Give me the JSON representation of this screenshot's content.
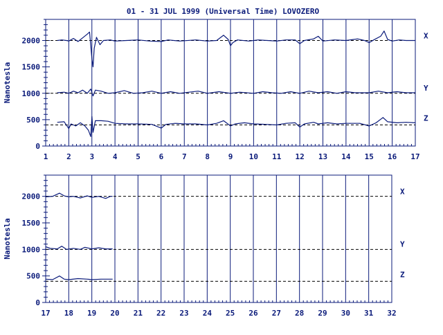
{
  "title": "01 - 31 JUL 1999 (Universal Time) LOVOZERO",
  "colors": {
    "ink": "#0a1a7a",
    "trace": "#0a1a7a"
  },
  "chart_data": [
    {
      "type": "line",
      "panel": "top",
      "title": "01 - 31 JUL 1999 (Universal Time) LOVOZERO",
      "ylabel": "Nanotesla",
      "xlim": [
        1,
        17
      ],
      "ylim": [
        0,
        2400
      ],
      "x_ticks": [
        1,
        2,
        3,
        4,
        5,
        6,
        7,
        8,
        9,
        10,
        11,
        12,
        13,
        14,
        15,
        16,
        17
      ],
      "y_ticks": [
        0,
        500,
        1000,
        1500,
        2000
      ],
      "grid": "vertical lines at each day",
      "baselines": [
        2000,
        1000,
        400
      ],
      "series": [
        {
          "name": "X",
          "points": [
            [
              1.5,
              2000
            ],
            [
              1.7,
              2010
            ],
            [
              1.9,
              2000
            ],
            [
              2.0,
              1990
            ],
            [
              2.2,
              2040
            ],
            [
              2.4,
              1980
            ],
            [
              2.6,
              2050
            ],
            [
              2.8,
              2120
            ],
            [
              2.9,
              2160
            ],
            [
              3.0,
              1650
            ],
            [
              3.05,
              1500
            ],
            [
              3.1,
              1850
            ],
            [
              3.2,
              2060
            ],
            [
              3.35,
              1920
            ],
            [
              3.5,
              2000
            ],
            [
              3.8,
              2010
            ],
            [
              4.0,
              1990
            ],
            [
              4.5,
              2000
            ],
            [
              5.0,
              2010
            ],
            [
              5.5,
              1990
            ],
            [
              6.0,
              1980
            ],
            [
              6.3,
              2010
            ],
            [
              6.8,
              1990
            ],
            [
              7.5,
              2010
            ],
            [
              8.0,
              1990
            ],
            [
              8.4,
              2000
            ],
            [
              8.7,
              2100
            ],
            [
              8.9,
              2020
            ],
            [
              9.0,
              1900
            ],
            [
              9.1,
              1960
            ],
            [
              9.3,
              2010
            ],
            [
              9.8,
              1990
            ],
            [
              10.2,
              2010
            ],
            [
              10.6,
              2000
            ],
            [
              11.0,
              1990
            ],
            [
              11.4,
              2010
            ],
            [
              11.8,
              2010
            ],
            [
              12.0,
              1940
            ],
            [
              12.2,
              2000
            ],
            [
              12.6,
              2030
            ],
            [
              12.8,
              2080
            ],
            [
              13.0,
              1990
            ],
            [
              13.5,
              2010
            ],
            [
              14.0,
              2000
            ],
            [
              14.5,
              2030
            ],
            [
              14.8,
              2000
            ],
            [
              15.0,
              1960
            ],
            [
              15.2,
              2010
            ],
            [
              15.5,
              2080
            ],
            [
              15.65,
              2180
            ],
            [
              15.8,
              2020
            ],
            [
              16.0,
              1990
            ],
            [
              16.3,
              2010
            ],
            [
              16.6,
              2000
            ],
            [
              17.0,
              2000
            ]
          ]
        },
        {
          "name": "Y",
          "points": [
            [
              1.5,
              1010
            ],
            [
              1.8,
              1020
            ],
            [
              2.0,
              1000
            ],
            [
              2.2,
              1040
            ],
            [
              2.4,
              1010
            ],
            [
              2.6,
              1060
            ],
            [
              2.8,
              1000
            ],
            [
              2.95,
              1080
            ],
            [
              3.05,
              950
            ],
            [
              3.15,
              1060
            ],
            [
              3.4,
              1040
            ],
            [
              3.7,
              1000
            ],
            [
              4.0,
              1010
            ],
            [
              4.4,
              1050
            ],
            [
              4.8,
              1000
            ],
            [
              5.2,
              1010
            ],
            [
              5.6,
              1040
            ],
            [
              6.0,
              1000
            ],
            [
              6.4,
              1030
            ],
            [
              6.8,
              1000
            ],
            [
              7.2,
              1020
            ],
            [
              7.6,
              1040
            ],
            [
              8.0,
              1000
            ],
            [
              8.5,
              1030
            ],
            [
              9.0,
              1000
            ],
            [
              9.4,
              1020
            ],
            [
              10.0,
              1000
            ],
            [
              10.4,
              1030
            ],
            [
              10.8,
              1010
            ],
            [
              11.2,
              1000
            ],
            [
              11.6,
              1030
            ],
            [
              12.0,
              1000
            ],
            [
              12.4,
              1040
            ],
            [
              12.8,
              1010
            ],
            [
              13.2,
              1030
            ],
            [
              13.6,
              1000
            ],
            [
              14.0,
              1030
            ],
            [
              14.4,
              1010
            ],
            [
              15.0,
              1010
            ],
            [
              15.4,
              1040
            ],
            [
              15.8,
              1010
            ],
            [
              16.2,
              1030
            ],
            [
              16.6,
              1010
            ],
            [
              17.0,
              1010
            ]
          ]
        },
        {
          "name": "Z",
          "points": [
            [
              1.5,
              450
            ],
            [
              1.8,
              460
            ],
            [
              2.0,
              330
            ],
            [
              2.1,
              420
            ],
            [
              2.3,
              380
            ],
            [
              2.5,
              440
            ],
            [
              2.7,
              380
            ],
            [
              2.85,
              300
            ],
            [
              2.95,
              180
            ],
            [
              3.0,
              560
            ],
            [
              3.05,
              260
            ],
            [
              3.15,
              480
            ],
            [
              3.4,
              480
            ],
            [
              3.7,
              470
            ],
            [
              4.0,
              430
            ],
            [
              4.5,
              420
            ],
            [
              5.0,
              420
            ],
            [
              5.6,
              410
            ],
            [
              6.0,
              340
            ],
            [
              6.2,
              410
            ],
            [
              6.6,
              430
            ],
            [
              7.0,
              420
            ],
            [
              7.5,
              420
            ],
            [
              8.0,
              400
            ],
            [
              8.4,
              430
            ],
            [
              8.7,
              480
            ],
            [
              9.0,
              380
            ],
            [
              9.2,
              420
            ],
            [
              9.6,
              440
            ],
            [
              10.0,
              420
            ],
            [
              10.5,
              410
            ],
            [
              11.0,
              400
            ],
            [
              11.4,
              430
            ],
            [
              11.8,
              440
            ],
            [
              12.0,
              360
            ],
            [
              12.2,
              420
            ],
            [
              12.6,
              450
            ],
            [
              12.8,
              420
            ],
            [
              13.2,
              440
            ],
            [
              13.6,
              420
            ],
            [
              14.0,
              430
            ],
            [
              14.6,
              430
            ],
            [
              15.0,
              380
            ],
            [
              15.3,
              440
            ],
            [
              15.6,
              540
            ],
            [
              15.8,
              460
            ],
            [
              16.2,
              440
            ],
            [
              16.6,
              450
            ],
            [
              17.0,
              440
            ]
          ]
        }
      ]
    },
    {
      "type": "line",
      "panel": "bottom",
      "ylabel": "Nanotesla",
      "xlim": [
        17,
        32
      ],
      "ylim": [
        0,
        2400
      ],
      "x_ticks": [
        17,
        18,
        19,
        20,
        21,
        22,
        23,
        24,
        25,
        26,
        27,
        28,
        29,
        30,
        31,
        32
      ],
      "y_ticks": [
        0,
        500,
        1000,
        1500,
        2000
      ],
      "grid": "vertical lines at each day",
      "baselines": [
        2000,
        1000,
        400
      ],
      "series": [
        {
          "name": "X",
          "points": [
            [
              17.0,
              1990
            ],
            [
              17.3,
              2000
            ],
            [
              17.6,
              2060
            ],
            [
              17.8,
              2010
            ],
            [
              18.0,
              1990
            ],
            [
              18.2,
              2000
            ],
            [
              18.5,
              1970
            ],
            [
              18.8,
              2010
            ],
            [
              19.0,
              1980
            ],
            [
              19.3,
              2000
            ],
            [
              19.6,
              1960
            ],
            [
              19.8,
              2000
            ],
            [
              19.9,
              2000
            ]
          ]
        },
        {
          "name": "Y",
          "points": [
            [
              17.0,
              1050
            ],
            [
              17.2,
              1020
            ],
            [
              17.5,
              1010
            ],
            [
              17.7,
              1060
            ],
            [
              17.9,
              1000
            ],
            [
              18.2,
              1020
            ],
            [
              18.5,
              1000
            ],
            [
              18.7,
              1040
            ],
            [
              19.0,
              1010
            ],
            [
              19.3,
              1030
            ],
            [
              19.6,
              1010
            ],
            [
              19.9,
              1010
            ]
          ]
        },
        {
          "name": "Z",
          "points": [
            [
              17.0,
              440
            ],
            [
              17.3,
              430
            ],
            [
              17.6,
              500
            ],
            [
              17.8,
              440
            ],
            [
              18.0,
              430
            ],
            [
              18.4,
              450
            ],
            [
              18.8,
              440
            ],
            [
              19.0,
              430
            ],
            [
              19.4,
              440
            ],
            [
              19.9,
              440
            ]
          ]
        }
      ]
    }
  ]
}
